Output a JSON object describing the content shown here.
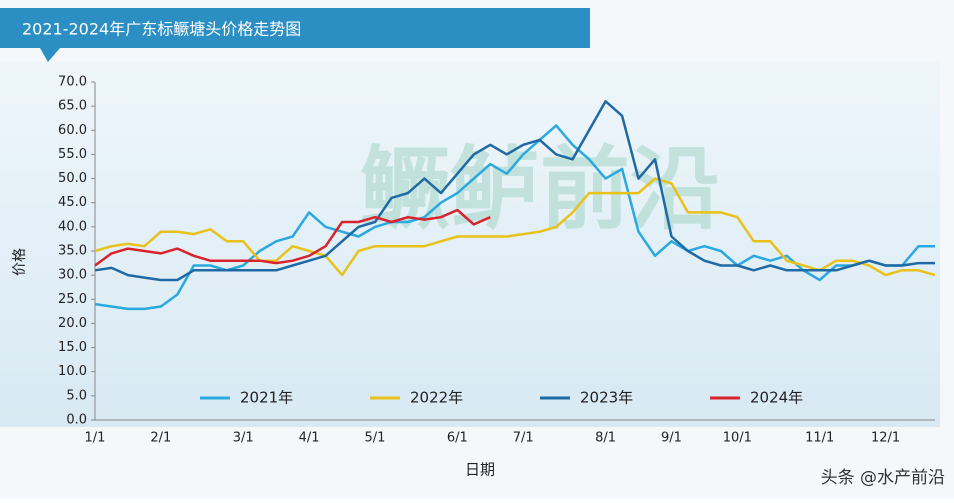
{
  "chart_data": {
    "type": "line",
    "title": "2021-2024年广东标鳜塘头价格走势图",
    "y_label": "价格",
    "x_label": "日期",
    "watermark": "鳜鲈前沿",
    "source": "头条 @水产前沿",
    "categories": [
      "1/1",
      null,
      null,
      null,
      "2/1",
      null,
      null,
      null,
      null,
      "3/1",
      null,
      null,
      null,
      "4/1",
      null,
      null,
      null,
      "5/1",
      null,
      null,
      null,
      null,
      "6/1",
      null,
      null,
      null,
      "7/1",
      null,
      null,
      null,
      null,
      "8/1",
      null,
      null,
      null,
      "9/1",
      null,
      null,
      null,
      "10/1",
      null,
      null,
      null,
      null,
      "11/1",
      null,
      null,
      null,
      "12/1",
      null,
      null,
      null
    ],
    "ylim": [
      0,
      70
    ],
    "yticks": [
      {
        "value": 0,
        "label": "0.0"
      },
      {
        "value": 5,
        "label": "5.0"
      },
      {
        "value": 10,
        "label": "10.0"
      },
      {
        "value": 15,
        "label": "15.0"
      },
      {
        "value": 20,
        "label": "20.0"
      },
      {
        "value": 25,
        "label": "25.0"
      },
      {
        "value": 30,
        "label": "30.0"
      },
      {
        "value": 35,
        "label": "35.0"
      },
      {
        "value": 40,
        "label": "40.0"
      },
      {
        "value": 45,
        "label": "45.0"
      },
      {
        "value": 50,
        "label": "50.0"
      },
      {
        "value": 55,
        "label": "55.0"
      },
      {
        "value": 60,
        "label": "60.0"
      },
      {
        "value": 65,
        "label": "65.0"
      },
      {
        "value": 70,
        "label": "70.0"
      }
    ],
    "series": [
      {
        "name": "2021年",
        "color": "#2aa9e0",
        "values": [
          24,
          23.5,
          23,
          23,
          23.5,
          26,
          32,
          32,
          31,
          32,
          35,
          37,
          38,
          43,
          40,
          39,
          38,
          40,
          41,
          41,
          42,
          45,
          47,
          50,
          53,
          51,
          55,
          58,
          61,
          57,
          54,
          50,
          52,
          39,
          34,
          37,
          35,
          36,
          35,
          32,
          34,
          33,
          34,
          31,
          29,
          32,
          32,
          33,
          32,
          32,
          36,
          36
        ]
      },
      {
        "name": "2022年",
        "color": "#e8c21a",
        "values": [
          35,
          36,
          36.5,
          36,
          39,
          39,
          38.5,
          39.5,
          37,
          37,
          33,
          33,
          36,
          35,
          34,
          30,
          35,
          36,
          36,
          36,
          36,
          37,
          38,
          38,
          38,
          38,
          38.5,
          39,
          40,
          43,
          47,
          47,
          47,
          47,
          50,
          49,
          43,
          43,
          43,
          42,
          37,
          37,
          33,
          32,
          31,
          33,
          33,
          32,
          30,
          31,
          31,
          30
        ]
      },
      {
        "name": "2023年",
        "color": "#1f6aa5",
        "values": [
          31,
          31.5,
          30,
          29.5,
          29,
          29,
          31,
          31,
          31,
          31,
          31,
          31,
          32,
          33,
          34,
          37,
          40,
          41,
          46,
          47,
          50,
          47,
          51,
          55,
          57,
          55,
          57,
          58,
          55,
          54,
          60,
          66,
          63,
          50,
          54,
          38,
          35,
          33,
          32,
          32,
          31,
          32,
          31,
          31,
          31,
          31,
          32,
          33,
          32,
          32,
          32.5,
          32.5
        ]
      },
      {
        "name": "2024年",
        "color": "#d9232e",
        "values": [
          32,
          34.5,
          35.5,
          35,
          34.5,
          35.5,
          34,
          33,
          33,
          33,
          33,
          32.5,
          33,
          34,
          36,
          41,
          41,
          42,
          41,
          42,
          41.5,
          42,
          43.5,
          40.5,
          42,
          null,
          null,
          null,
          null,
          null,
          null,
          null,
          null,
          null,
          null,
          null,
          null,
          null,
          null,
          null,
          null,
          null,
          null,
          null,
          null,
          null,
          null,
          null,
          null,
          null,
          null,
          null
        ]
      }
    ]
  }
}
